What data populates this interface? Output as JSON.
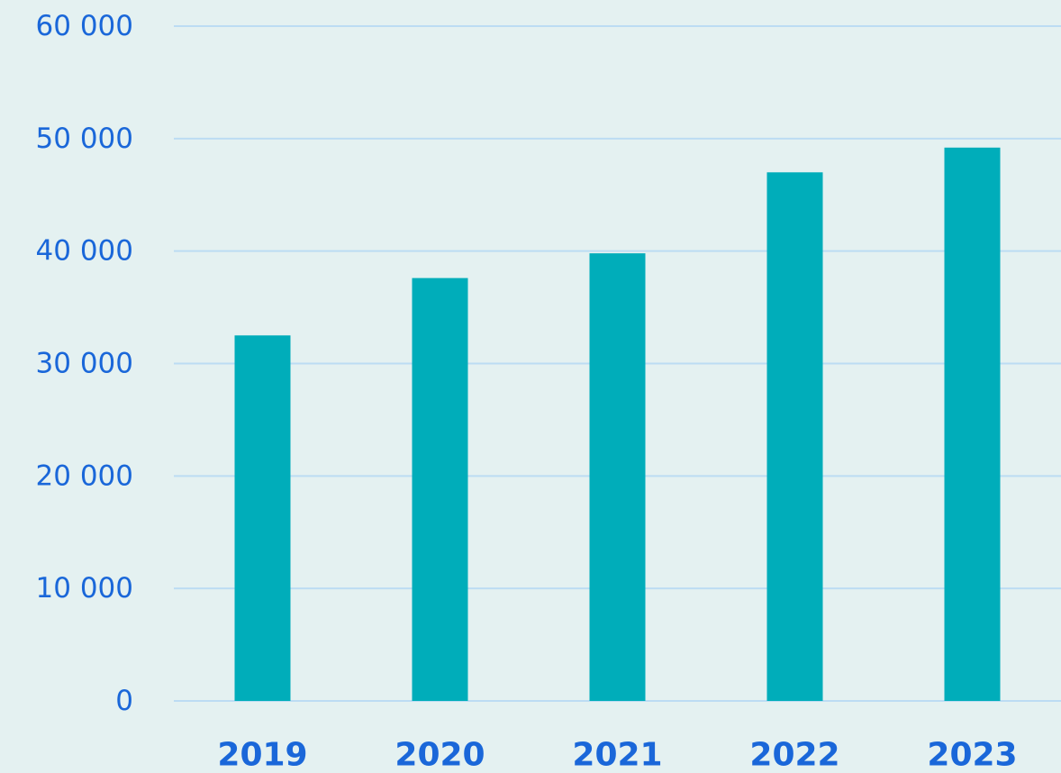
{
  "chart_data": {
    "type": "bar",
    "categories": [
      "2019",
      "2020",
      "2021",
      "2022",
      "2023"
    ],
    "values": [
      32500,
      37600,
      39800,
      47000,
      49200
    ],
    "title": "",
    "xlabel": "",
    "ylabel": "",
    "ylim": [
      0,
      60000
    ],
    "y_ticks": [
      0,
      10000,
      20000,
      30000,
      40000,
      50000,
      60000
    ],
    "y_tick_labels": [
      "0",
      "10 000",
      "20 000",
      "30 000",
      "40 000",
      "50 000",
      "60 000"
    ],
    "grid": true,
    "legend": "none",
    "colors": {
      "bar": "#00adba",
      "gridline": "#bcdcf3",
      "tick_label": "#1a67d9",
      "background": "#e4f1f1"
    }
  }
}
